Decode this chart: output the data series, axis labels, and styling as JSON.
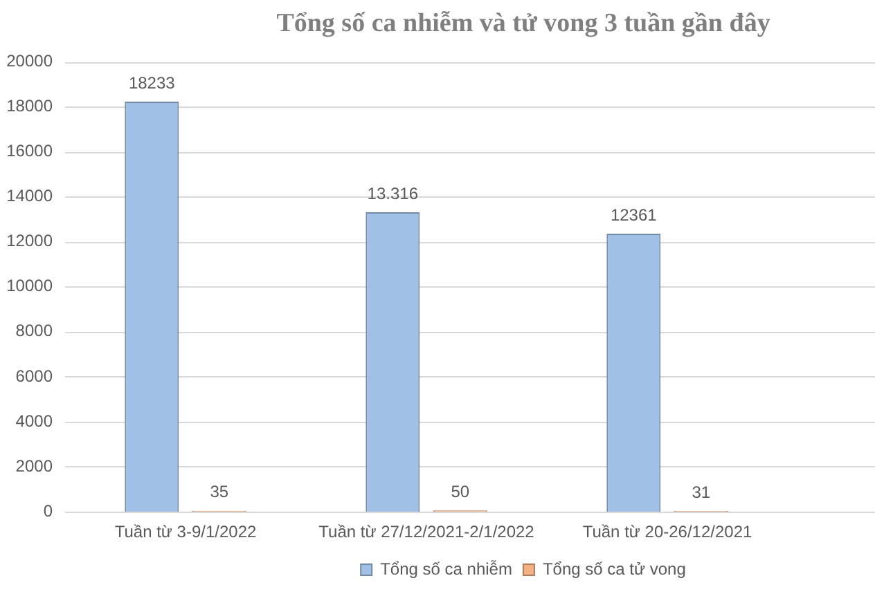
{
  "chart_data": {
    "type": "bar",
    "title": "Tổng số ca nhiễm và tử vong 3 tuần gần đây",
    "categories": [
      "Tuần từ 3-9/1/2022",
      "Tuần từ 27/12/2021-2/1/2022",
      "Tuần từ 20-26/12/2021"
    ],
    "series": [
      {
        "name": "Tổng số ca nhiễm",
        "color": "#a0c0e6",
        "values": [
          18233,
          13316,
          12361
        ],
        "value_labels": [
          "18233",
          "13.316",
          "12361"
        ]
      },
      {
        "name": "Tổng số ca tử vong",
        "color": "#f4b183",
        "values": [
          35,
          50,
          31
        ],
        "value_labels": [
          "35",
          "50",
          "31"
        ]
      }
    ],
    "ylim": [
      0,
      20000
    ],
    "yticks": [
      0,
      2000,
      4000,
      6000,
      8000,
      10000,
      12000,
      14000,
      16000,
      18000,
      20000
    ],
    "grid": "y",
    "legend": "bottom"
  }
}
